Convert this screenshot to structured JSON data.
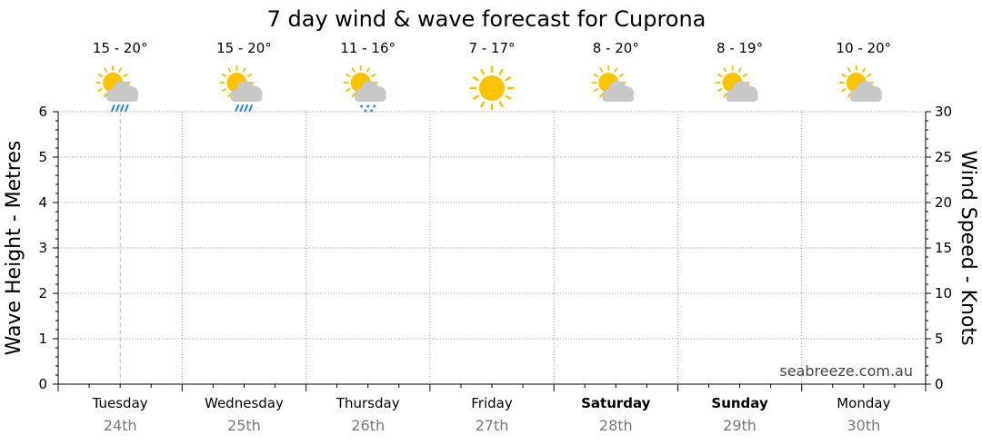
{
  "chart_data": {
    "type": "line",
    "title": "7 day wind & wave forecast for Cuprona",
    "ylabel_left": "Wave Height - Metres",
    "ylabel_right": "Wind Speed - Knots",
    "ylim_left": [
      0,
      6
    ],
    "ylim_right": [
      0,
      30
    ],
    "left_ticks": [
      "0",
      "1",
      "2",
      "3",
      "4",
      "5",
      "6"
    ],
    "right_ticks": [
      "0",
      "5",
      "10",
      "15",
      "20",
      "25",
      "30"
    ],
    "grid": true,
    "watermark": "seabreeze.com.au",
    "current_time_marker_day_index": 0.5,
    "days": [
      {
        "name": "Tuesday",
        "date": "24th",
        "temp": "15 - 20°",
        "icon": "sun-cloud-rain-icon",
        "bold": false
      },
      {
        "name": "Wednesday",
        "date": "25th",
        "temp": "15 - 20°",
        "icon": "sun-cloud-rain-icon",
        "bold": false
      },
      {
        "name": "Thursday",
        "date": "26th",
        "temp": "11 - 16°",
        "icon": "sun-cloud-drizzle-icon",
        "bold": false
      },
      {
        "name": "Friday",
        "date": "27th",
        "temp": "7 - 17°",
        "icon": "sun-icon",
        "bold": false
      },
      {
        "name": "Saturday",
        "date": "28th",
        "temp": "8 - 20°",
        "icon": "sun-cloud-icon",
        "bold": true
      },
      {
        "name": "Sunday",
        "date": "29th",
        "temp": "8 - 19°",
        "icon": "sun-cloud-icon",
        "bold": true
      },
      {
        "name": "Monday",
        "date": "30th",
        "temp": "10 - 20°",
        "icon": "sun-cloud-icon",
        "bold": false
      }
    ],
    "series": []
  },
  "colors": {
    "sun": "#FFC300",
    "cloud": "#C8C8C8",
    "rain": "#1E88E5",
    "grid": "#9a9a9a",
    "marker": "#F4A6B4"
  }
}
